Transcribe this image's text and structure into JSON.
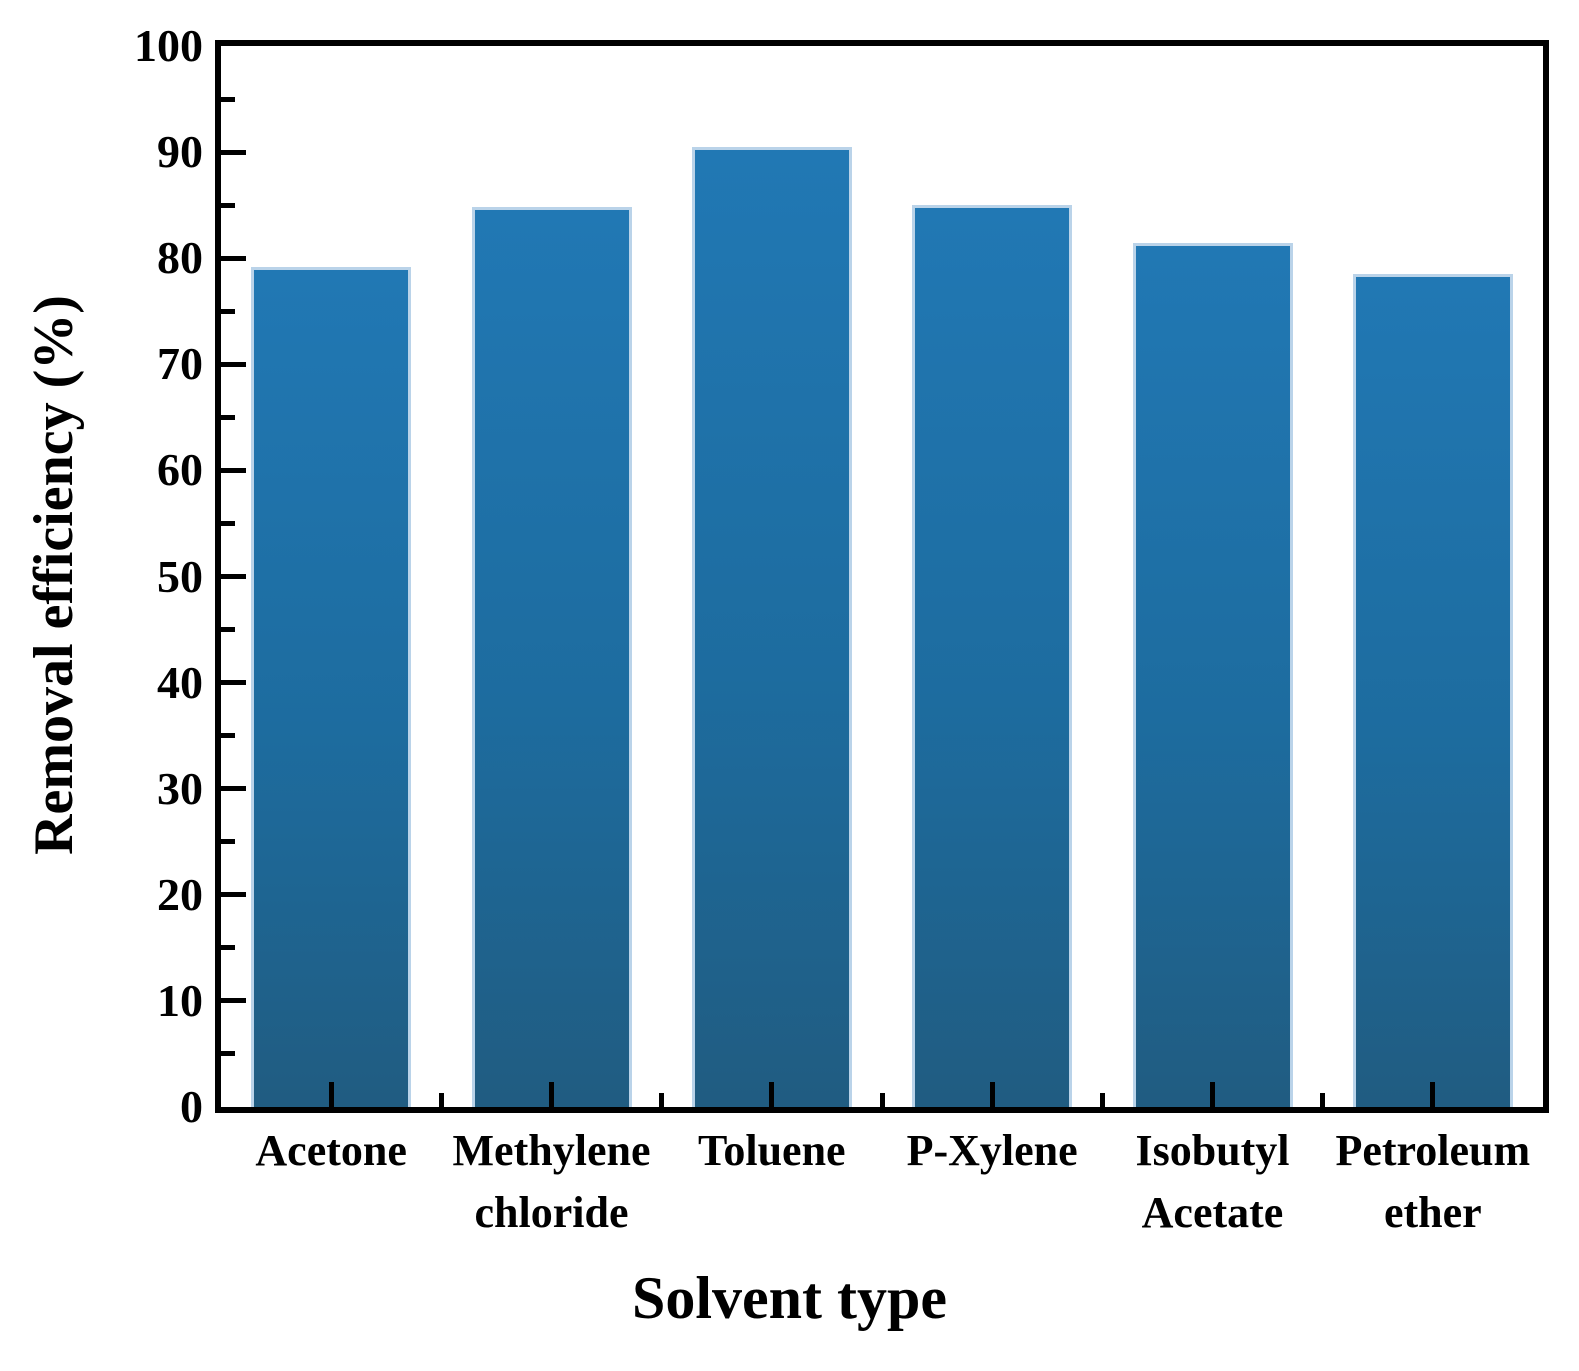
{
  "chart_data": {
    "type": "bar",
    "title": "",
    "xlabel": "Solvent type",
    "ylabel": "Removal efficiency (%)",
    "categories": [
      "Acetone",
      "Methylene\nchloride",
      "Toluene",
      "P-Xylene",
      "Isobutyl\nAcetate",
      "Petroleum\nether"
    ],
    "values": [
      79.2,
      84.8,
      90.5,
      85.0,
      81.4,
      78.5
    ],
    "ylim": [
      0,
      100
    ],
    "ytick_major_step": 10,
    "ytick_minor_step": 5,
    "ytick_labels": [
      "0",
      "10",
      "20",
      "30",
      "40",
      "50",
      "60",
      "70",
      "80",
      "90",
      "100"
    ],
    "grid": false,
    "legend": null,
    "colors": {
      "bar_top": "#2178b4",
      "bar_mid": "#1d6c9f",
      "bar_bottom": "#205c81",
      "bar_edge": "#bad3e9",
      "axis": "#000000",
      "background": "#ffffff",
      "text": "#000000"
    }
  }
}
